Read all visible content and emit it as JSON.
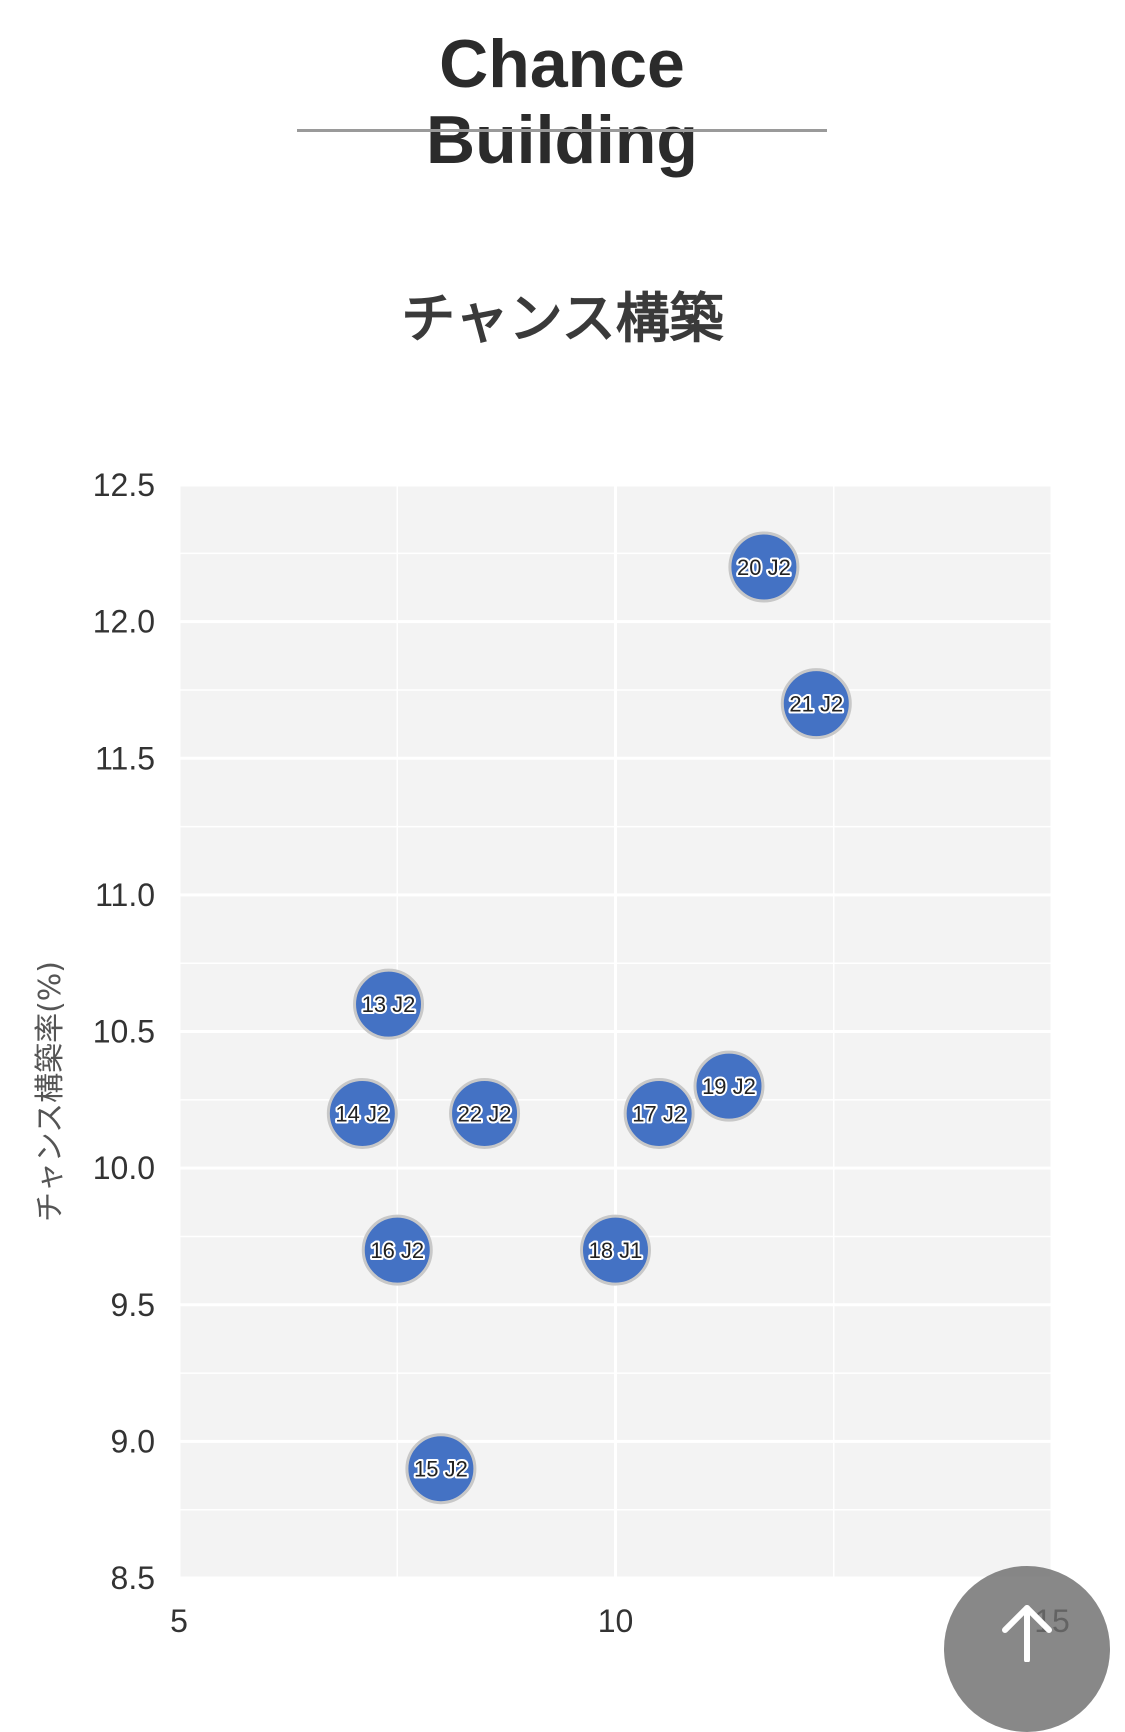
{
  "page_title": "Chance Building",
  "scroll_top": {
    "icon": "arrow-up-icon"
  },
  "colors": {
    "point_fill": "#4472c4",
    "point_stroke": "#c8c8c8",
    "plot_background": "#f3f3f3",
    "gridline": "#ffffff"
  },
  "chart_data": {
    "type": "scatter",
    "title": "チャンス構築",
    "xlabel": "",
    "ylabel": "チャンス構築率(%)",
    "xlim": [
      5,
      15
    ],
    "ylim": [
      8.5,
      12.5
    ],
    "x_ticks": [
      "5",
      "10",
      "15"
    ],
    "y_ticks": [
      "12.5",
      "12.0",
      "11.5",
      "11.0",
      "10.5",
      "10.0",
      "9.5",
      "9.0",
      "8.5"
    ],
    "grid": true,
    "points": [
      {
        "label": "20 J2",
        "x": 11.7,
        "y": 12.2
      },
      {
        "label": "21 J2",
        "x": 12.3,
        "y": 11.7
      },
      {
        "label": "13 J2",
        "x": 7.4,
        "y": 10.6
      },
      {
        "label": "19 J2",
        "x": 11.3,
        "y": 10.3
      },
      {
        "label": "14 J2",
        "x": 7.1,
        "y": 10.2
      },
      {
        "label": "22 J2",
        "x": 8.5,
        "y": 10.2
      },
      {
        "label": "17 J2",
        "x": 10.5,
        "y": 10.2
      },
      {
        "label": "16 J2",
        "x": 7.5,
        "y": 9.7
      },
      {
        "label": "18 J1",
        "x": 10.0,
        "y": 9.7
      },
      {
        "label": "15 J2",
        "x": 8.0,
        "y": 8.9
      }
    ]
  }
}
